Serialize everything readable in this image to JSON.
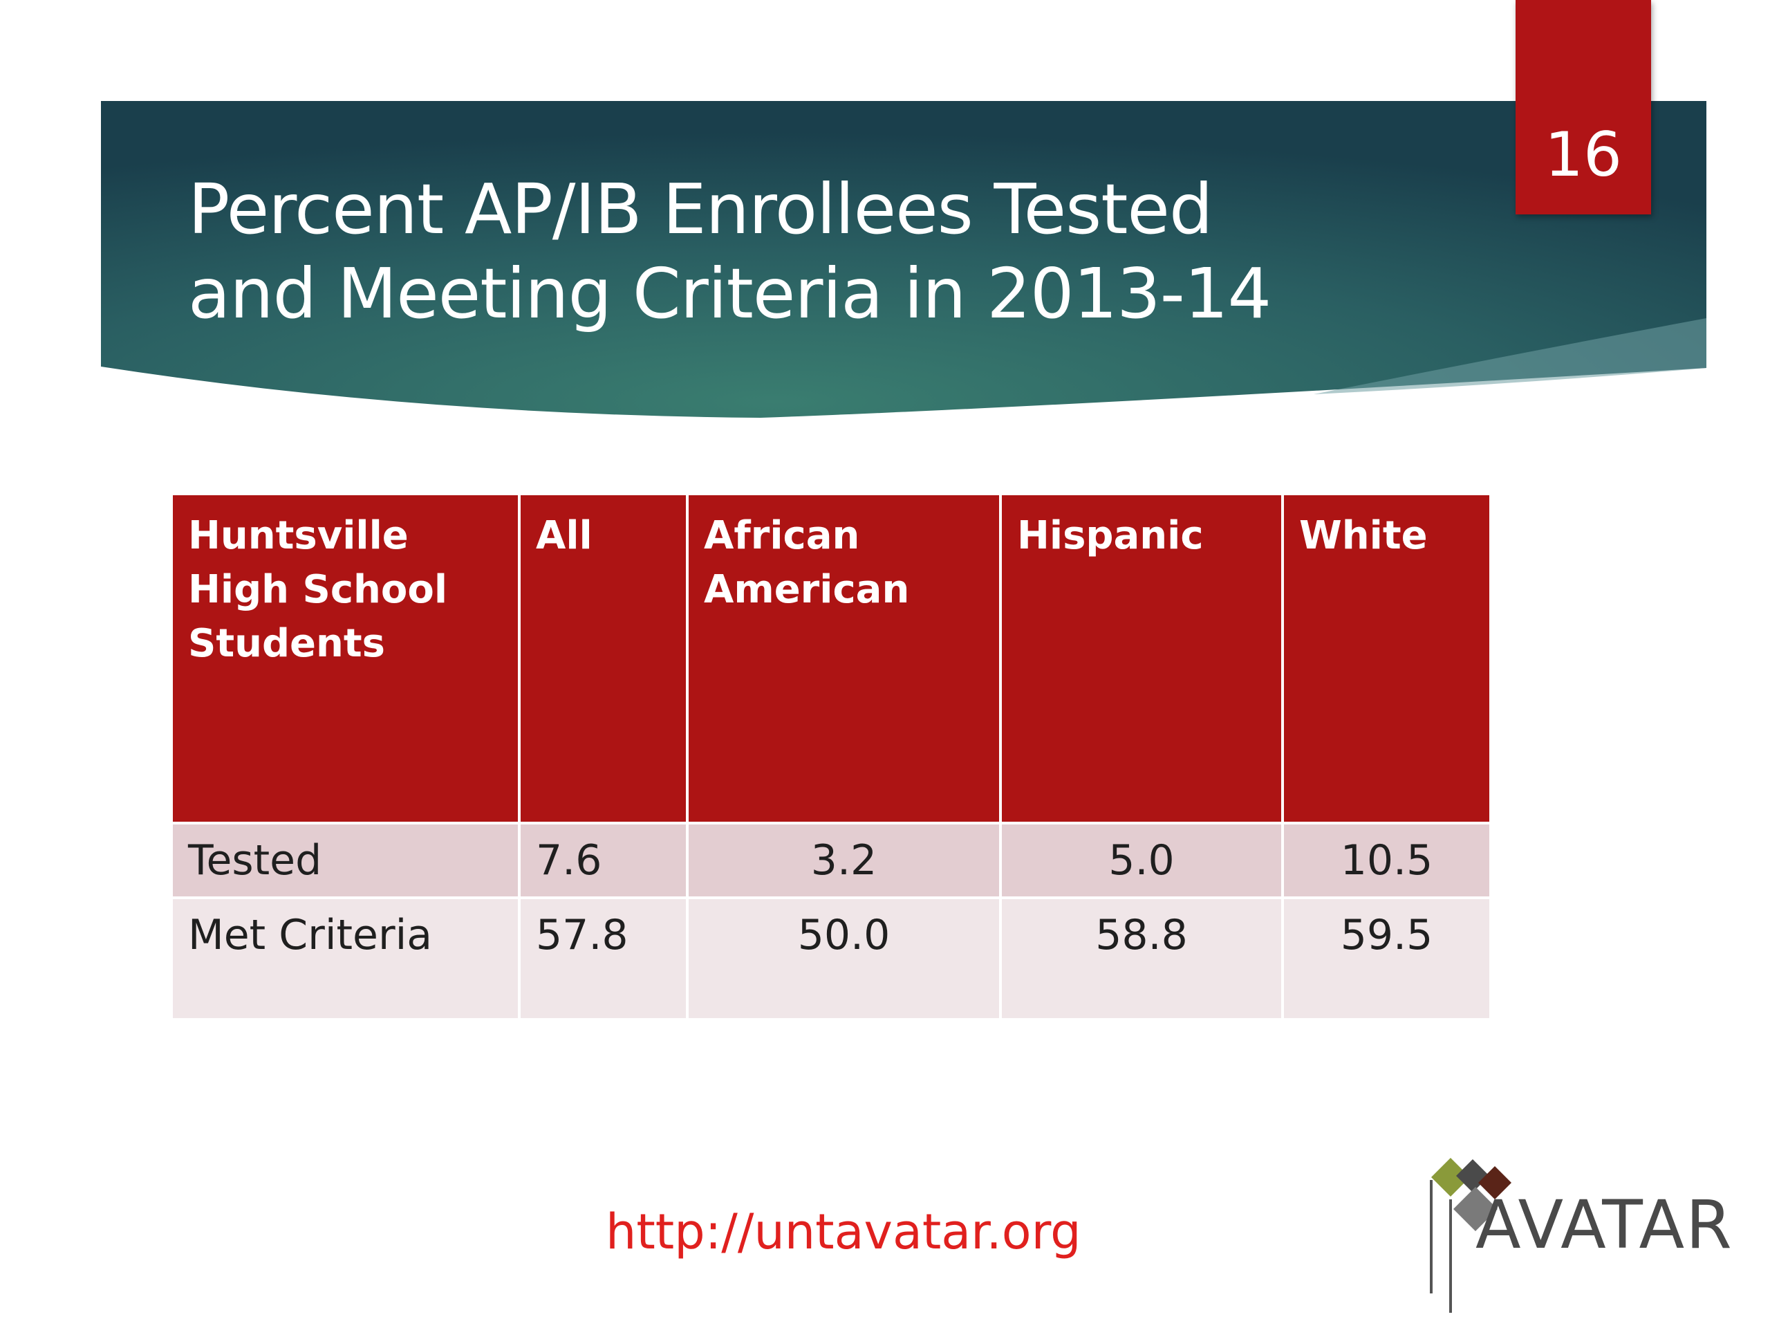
{
  "slide": {
    "title_line1": "Percent AP/IB Enrollees Tested",
    "title_line2": "and Meeting Criteria in 2013-14",
    "number": "16"
  },
  "table": {
    "headers": [
      "Huntsville High School Students",
      "All",
      "African American",
      "Hispanic",
      "White"
    ],
    "rows": [
      [
        "Tested",
        "7.6",
        "3.2",
        "5.0",
        "10.5"
      ],
      [
        "Met Criteria",
        "57.8",
        "50.0",
        "58.8",
        "59.5"
      ]
    ]
  },
  "footer": {
    "url": "http://untavatar.org"
  },
  "logo": {
    "text": "AVATAR"
  },
  "colors": {
    "banner_dark": "#1d4a52",
    "banner_light": "#3a7d70",
    "accent_red": "#ad1414",
    "row_tested_bg": "#e3cdd1",
    "row_met_bg": "#f0e6e8",
    "url_red": "#e0201e"
  }
}
